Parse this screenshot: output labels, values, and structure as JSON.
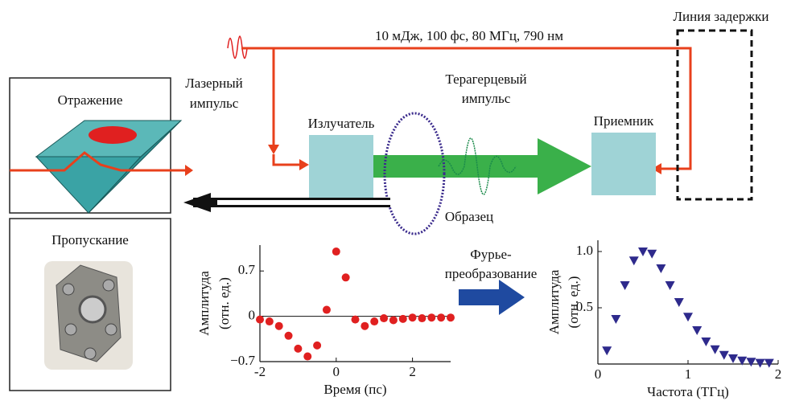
{
  "beam_params": "10 мДж, 100 фс, 80 МГц, 790 нм",
  "delay_line": "Линия задержки",
  "laser_pulse": [
    "Лазерный",
    "импульс"
  ],
  "thz_pulse": [
    "Терагерцевый",
    "импульс"
  ],
  "emitter": "Излучатель",
  "receiver": "Приемник",
  "sample": "Образец",
  "reflection": "Отражение",
  "transmission": "Пропускание",
  "fourier": [
    "Фурье-",
    "преобразование"
  ],
  "time_plot": {
    "type": "scatter",
    "ylabel": [
      "Амплитуда",
      "(отн. ед.)"
    ],
    "xlabel": "Время (пс)",
    "x": [
      -2,
      -1.75,
      -1.5,
      -1.25,
      -1,
      -0.75,
      -0.5,
      -0.25,
      0,
      0.25,
      0.5,
      0.75,
      1,
      1.25,
      1.5,
      1.75,
      2,
      2.25,
      2.5,
      2.75,
      3
    ],
    "values": [
      -0.05,
      -0.08,
      -0.15,
      -0.3,
      -0.5,
      -0.62,
      -0.45,
      0.1,
      1.0,
      0.6,
      -0.05,
      -0.15,
      -0.08,
      -0.03,
      -0.06,
      -0.04,
      -0.02,
      -0.03,
      -0.02,
      -0.02,
      -0.02
    ],
    "color": "#e02020",
    "xlim": [
      -2,
      3
    ],
    "ylim": [
      -0.7,
      1.1
    ],
    "xticks": [
      -2,
      0,
      2
    ],
    "yticks": [
      {
        "value": -0.7,
        "label": "−0.7"
      },
      0,
      0.7
    ],
    "zero_line": true
  },
  "spectrum_plot": {
    "type": "scatter",
    "ylabel": [
      "Амплитуда",
      "(отн. ед.)"
    ],
    "xlabel": "Частота (ТГц)",
    "x": [
      0.1,
      0.2,
      0.3,
      0.4,
      0.5,
      0.6,
      0.7,
      0.8,
      0.9,
      1.0,
      1.1,
      1.2,
      1.3,
      1.4,
      1.5,
      1.6,
      1.7,
      1.8,
      1.9
    ],
    "values": [
      0.12,
      0.4,
      0.7,
      0.92,
      1.0,
      0.98,
      0.85,
      0.7,
      0.55,
      0.42,
      0.3,
      0.2,
      0.13,
      0.08,
      0.05,
      0.03,
      0.02,
      0.01,
      0.01
    ],
    "color": "#2e2a8c",
    "xlim": [
      0,
      2
    ],
    "ylim": [
      0,
      1.1
    ],
    "xticks": [
      0,
      1,
      2
    ],
    "yticks": [
      0.5,
      {
        "value": 1,
        "label": "1.0"
      }
    ]
  }
}
